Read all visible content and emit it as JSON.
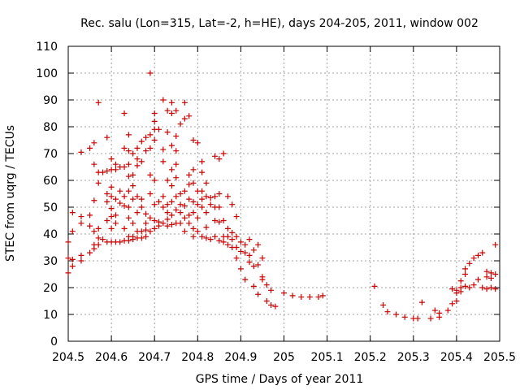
{
  "chart_data": {
    "type": "scatter",
    "title": "Rec. salu (Lon=315, Lat=-2, h=HE), days 204-205, 2011, window 002",
    "xlabel": "GPS time / Days of year 2011",
    "ylabel": "STEC from uqrg / TECUs",
    "xlim": [
      204.5,
      205.5
    ],
    "ylim": [
      0,
      110
    ],
    "x_ticks": [
      204.5,
      204.6,
      204.7,
      204.8,
      204.9,
      205,
      205.1,
      205.2,
      205.3,
      205.4,
      205.5
    ],
    "x_tick_labels": [
      "204.5",
      "204.6",
      "204.7",
      "204.8",
      "204.9",
      "205",
      "205.1",
      "205.2",
      "205.3",
      "205.4",
      "205.5"
    ],
    "y_ticks": [
      0,
      10,
      20,
      30,
      40,
      50,
      60,
      70,
      80,
      90,
      100,
      110
    ],
    "y_tick_labels": [
      "0",
      "10",
      "20",
      "30",
      "40",
      "50",
      "60",
      "70",
      "80",
      "90",
      "100",
      "110"
    ],
    "grid": true,
    "marker": "plus",
    "color": "#cc0000",
    "series": [
      {
        "points": [
          [
            204.5,
            37.0
          ],
          [
            204.5,
            31.0
          ],
          [
            204.5,
            25.5
          ],
          [
            204.51,
            48.0
          ],
          [
            204.51,
            41.0
          ],
          [
            204.51,
            30.5
          ],
          [
            204.51,
            28.0
          ],
          [
            204.53,
            70.5
          ],
          [
            204.53,
            46.5
          ],
          [
            204.53,
            44.0
          ],
          [
            204.53,
            32.0
          ],
          [
            204.53,
            30.0
          ],
          [
            204.55,
            72.0
          ],
          [
            204.55,
            47.0
          ],
          [
            204.55,
            43.0
          ],
          [
            204.55,
            33.0
          ],
          [
            204.56,
            74.0
          ],
          [
            204.56,
            66.0
          ],
          [
            204.56,
            52.5
          ],
          [
            204.56,
            41.0
          ],
          [
            204.56,
            36.0
          ],
          [
            204.56,
            34.5
          ],
          [
            204.57,
            89.0
          ],
          [
            204.57,
            63.0
          ],
          [
            204.57,
            59.0
          ],
          [
            204.57,
            42.0
          ],
          [
            204.57,
            38.5
          ],
          [
            204.57,
            36.0
          ],
          [
            204.58,
            63.0
          ],
          [
            204.58,
            38.0
          ],
          [
            204.59,
            76.0
          ],
          [
            204.59,
            63.5
          ],
          [
            204.59,
            55.0
          ],
          [
            204.59,
            52.0
          ],
          [
            204.59,
            45.0
          ],
          [
            204.59,
            37.0
          ],
          [
            204.6,
            68.0
          ],
          [
            204.6,
            64.0
          ],
          [
            204.6,
            57.5
          ],
          [
            204.6,
            54.0
          ],
          [
            204.6,
            49.5
          ],
          [
            204.6,
            46.5
          ],
          [
            204.6,
            42.0
          ],
          [
            204.6,
            37.0
          ],
          [
            204.61,
            66.0
          ],
          [
            204.61,
            64.0
          ],
          [
            204.61,
            53.0
          ],
          [
            204.61,
            47.0
          ],
          [
            204.61,
            44.0
          ],
          [
            204.61,
            37.0
          ],
          [
            204.62,
            65.0
          ],
          [
            204.62,
            56.0
          ],
          [
            204.62,
            51.5
          ],
          [
            204.62,
            37.0
          ],
          [
            204.63,
            85.0
          ],
          [
            204.63,
            72.0
          ],
          [
            204.63,
            65.0
          ],
          [
            204.63,
            54.0
          ],
          [
            204.63,
            50.5
          ],
          [
            204.63,
            42.0
          ],
          [
            204.63,
            37.5
          ],
          [
            204.64,
            77.0
          ],
          [
            204.64,
            71.0
          ],
          [
            204.64,
            66.0
          ],
          [
            204.64,
            61.5
          ],
          [
            204.64,
            56.0
          ],
          [
            204.64,
            50.0
          ],
          [
            204.64,
            46.0
          ],
          [
            204.64,
            39.0
          ],
          [
            204.64,
            37.5
          ],
          [
            204.65,
            70.0
          ],
          [
            204.65,
            62.0
          ],
          [
            204.65,
            58.0
          ],
          [
            204.65,
            53.0
          ],
          [
            204.65,
            44.0
          ],
          [
            204.65,
            39.0
          ],
          [
            204.65,
            38.0
          ],
          [
            204.66,
            72.0
          ],
          [
            204.66,
            68.0
          ],
          [
            204.66,
            65.5
          ],
          [
            204.66,
            54.0
          ],
          [
            204.66,
            48.0
          ],
          [
            204.66,
            41.0
          ],
          [
            204.66,
            38.5
          ],
          [
            204.67,
            74.5
          ],
          [
            204.67,
            67.0
          ],
          [
            204.67,
            53.0
          ],
          [
            204.67,
            50.0
          ],
          [
            204.67,
            41.0
          ],
          [
            204.67,
            38.5
          ],
          [
            204.68,
            76.0
          ],
          [
            204.68,
            71.0
          ],
          [
            204.68,
            47.5
          ],
          [
            204.68,
            44.0
          ],
          [
            204.68,
            41.5
          ],
          [
            204.68,
            39.0
          ],
          [
            204.69,
            100.0
          ],
          [
            204.69,
            77.0
          ],
          [
            204.69,
            72.0
          ],
          [
            204.69,
            62.0
          ],
          [
            204.69,
            55.0
          ],
          [
            204.69,
            46.0
          ],
          [
            204.69,
            41.0
          ],
          [
            204.7,
            85.0
          ],
          [
            204.7,
            82.0
          ],
          [
            204.7,
            79.0
          ],
          [
            204.7,
            75.0
          ],
          [
            204.7,
            60.0
          ],
          [
            204.7,
            51.0
          ],
          [
            204.7,
            45.0
          ],
          [
            204.7,
            42.0
          ],
          [
            204.71,
            79.0
          ],
          [
            204.71,
            52.0
          ],
          [
            204.71,
            44.5
          ],
          [
            204.71,
            43.0
          ],
          [
            204.72,
            90.0
          ],
          [
            204.72,
            71.5
          ],
          [
            204.72,
            67.0
          ],
          [
            204.72,
            54.0
          ],
          [
            204.72,
            50.0
          ],
          [
            204.72,
            44.0
          ],
          [
            204.73,
            86.0
          ],
          [
            204.73,
            78.0
          ],
          [
            204.73,
            60.0
          ],
          [
            204.73,
            51.0
          ],
          [
            204.73,
            48.0
          ],
          [
            204.73,
            45.5
          ],
          [
            204.73,
            43.0
          ],
          [
            204.74,
            89.0
          ],
          [
            204.74,
            85.0
          ],
          [
            204.74,
            73.0
          ],
          [
            204.74,
            64.0
          ],
          [
            204.74,
            58.0
          ],
          [
            204.74,
            52.0
          ],
          [
            204.74,
            47.0
          ],
          [
            204.74,
            43.5
          ],
          [
            204.75,
            86.0
          ],
          [
            204.75,
            76.5
          ],
          [
            204.75,
            71.0
          ],
          [
            204.75,
            66.0
          ],
          [
            204.75,
            61.0
          ],
          [
            204.75,
            54.0
          ],
          [
            204.75,
            49.0
          ],
          [
            204.75,
            44.0
          ],
          [
            204.76,
            81.0
          ],
          [
            204.76,
            55.0
          ],
          [
            204.76,
            51.0
          ],
          [
            204.76,
            48.0
          ],
          [
            204.76,
            44.0
          ],
          [
            204.77,
            89.0
          ],
          [
            204.77,
            83.0
          ],
          [
            204.77,
            56.0
          ],
          [
            204.77,
            50.5
          ],
          [
            204.77,
            46.0
          ],
          [
            204.77,
            41.0
          ],
          [
            204.78,
            84.0
          ],
          [
            204.78,
            62.0
          ],
          [
            204.78,
            58.5
          ],
          [
            204.78,
            53.0
          ],
          [
            204.78,
            47.0
          ],
          [
            204.78,
            44.0
          ],
          [
            204.79,
            75.0
          ],
          [
            204.79,
            64.0
          ],
          [
            204.79,
            59.0
          ],
          [
            204.79,
            52.0
          ],
          [
            204.79,
            48.0
          ],
          [
            204.79,
            42.0
          ],
          [
            204.79,
            39.0
          ],
          [
            204.8,
            74.0
          ],
          [
            204.8,
            56.0
          ],
          [
            204.8,
            51.0
          ],
          [
            204.8,
            46.0
          ],
          [
            204.8,
            41.0
          ],
          [
            204.81,
            67.0
          ],
          [
            204.81,
            63.0
          ],
          [
            204.81,
            56.0
          ],
          [
            204.81,
            53.0
          ],
          [
            204.81,
            50.0
          ],
          [
            204.81,
            39.0
          ],
          [
            204.82,
            59.0
          ],
          [
            204.82,
            54.0
          ],
          [
            204.82,
            48.0
          ],
          [
            204.82,
            42.5
          ],
          [
            204.82,
            38.5
          ],
          [
            204.83,
            53.5
          ],
          [
            204.83,
            51.0
          ],
          [
            204.83,
            38.0
          ],
          [
            204.84,
            69.0
          ],
          [
            204.84,
            54.0
          ],
          [
            204.84,
            50.0
          ],
          [
            204.84,
            45.0
          ],
          [
            204.84,
            39.0
          ],
          [
            204.85,
            68.0
          ],
          [
            204.85,
            55.0
          ],
          [
            204.85,
            50.0
          ],
          [
            204.85,
            44.5
          ],
          [
            204.85,
            37.5
          ],
          [
            204.86,
            70.0
          ],
          [
            204.86,
            45.0
          ],
          [
            204.86,
            39.0
          ],
          [
            204.86,
            37.0
          ],
          [
            204.87,
            54.0
          ],
          [
            204.87,
            42.0
          ],
          [
            204.87,
            39.0
          ],
          [
            204.87,
            36.0
          ],
          [
            204.88,
            51.0
          ],
          [
            204.88,
            40.5
          ],
          [
            204.88,
            38.0
          ],
          [
            204.88,
            35.0
          ],
          [
            204.89,
            46.5
          ],
          [
            204.89,
            39.0
          ],
          [
            204.89,
            35.0
          ],
          [
            204.89,
            31.0
          ],
          [
            204.9,
            37.0
          ],
          [
            204.9,
            33.5
          ],
          [
            204.9,
            27.0
          ],
          [
            204.91,
            36.0
          ],
          [
            204.91,
            33.0
          ],
          [
            204.91,
            23.0
          ],
          [
            204.92,
            38.0
          ],
          [
            204.92,
            32.0
          ],
          [
            204.92,
            29.5
          ],
          [
            204.93,
            34.0
          ],
          [
            204.93,
            28.0
          ],
          [
            204.93,
            20.5
          ],
          [
            204.94,
            36.0
          ],
          [
            204.94,
            28.5
          ],
          [
            204.94,
            17.5
          ],
          [
            204.95,
            31.0
          ],
          [
            204.95,
            24.0
          ],
          [
            204.95,
            23.0
          ],
          [
            204.96,
            21.0
          ],
          [
            204.96,
            15.0
          ],
          [
            204.97,
            19.0
          ],
          [
            204.97,
            13.5
          ],
          [
            204.98,
            13.0
          ],
          [
            205.0,
            18.0
          ],
          [
            205.02,
            17.0
          ],
          [
            205.04,
            16.5
          ],
          [
            205.06,
            16.5
          ],
          [
            205.08,
            16.5
          ],
          [
            205.09,
            17.0
          ],
          [
            205.21,
            20.5
          ],
          [
            205.23,
            13.5
          ],
          [
            205.24,
            11.0
          ],
          [
            205.26,
            10.0
          ],
          [
            205.28,
            9.0
          ],
          [
            205.3,
            8.5
          ],
          [
            205.31,
            8.5
          ],
          [
            205.32,
            14.5
          ],
          [
            205.34,
            8.5
          ],
          [
            205.35,
            11.5
          ],
          [
            205.36,
            10.5
          ],
          [
            205.36,
            9.0
          ],
          [
            205.38,
            11.5
          ],
          [
            205.39,
            19.5
          ],
          [
            205.39,
            14.0
          ],
          [
            205.4,
            19.0
          ],
          [
            205.4,
            18.0
          ],
          [
            205.4,
            15.0
          ],
          [
            205.41,
            22.5
          ],
          [
            205.41,
            20.0
          ],
          [
            205.41,
            18.5
          ],
          [
            205.42,
            27.0
          ],
          [
            205.42,
            25.0
          ],
          [
            205.42,
            20.5
          ],
          [
            205.43,
            29.0
          ],
          [
            205.43,
            20.0
          ],
          [
            205.44,
            31.0
          ],
          [
            205.44,
            21.0
          ],
          [
            205.45,
            32.0
          ],
          [
            205.45,
            23.0
          ],
          [
            205.46,
            33.0
          ],
          [
            205.46,
            20.0
          ],
          [
            205.47,
            26.0
          ],
          [
            205.47,
            24.0
          ],
          [
            205.47,
            19.5
          ],
          [
            205.48,
            25.5
          ],
          [
            205.48,
            23.5
          ],
          [
            205.48,
            20.0
          ],
          [
            205.49,
            36.0
          ],
          [
            205.49,
            25.0
          ],
          [
            205.49,
            19.5
          ]
        ]
      }
    ]
  }
}
